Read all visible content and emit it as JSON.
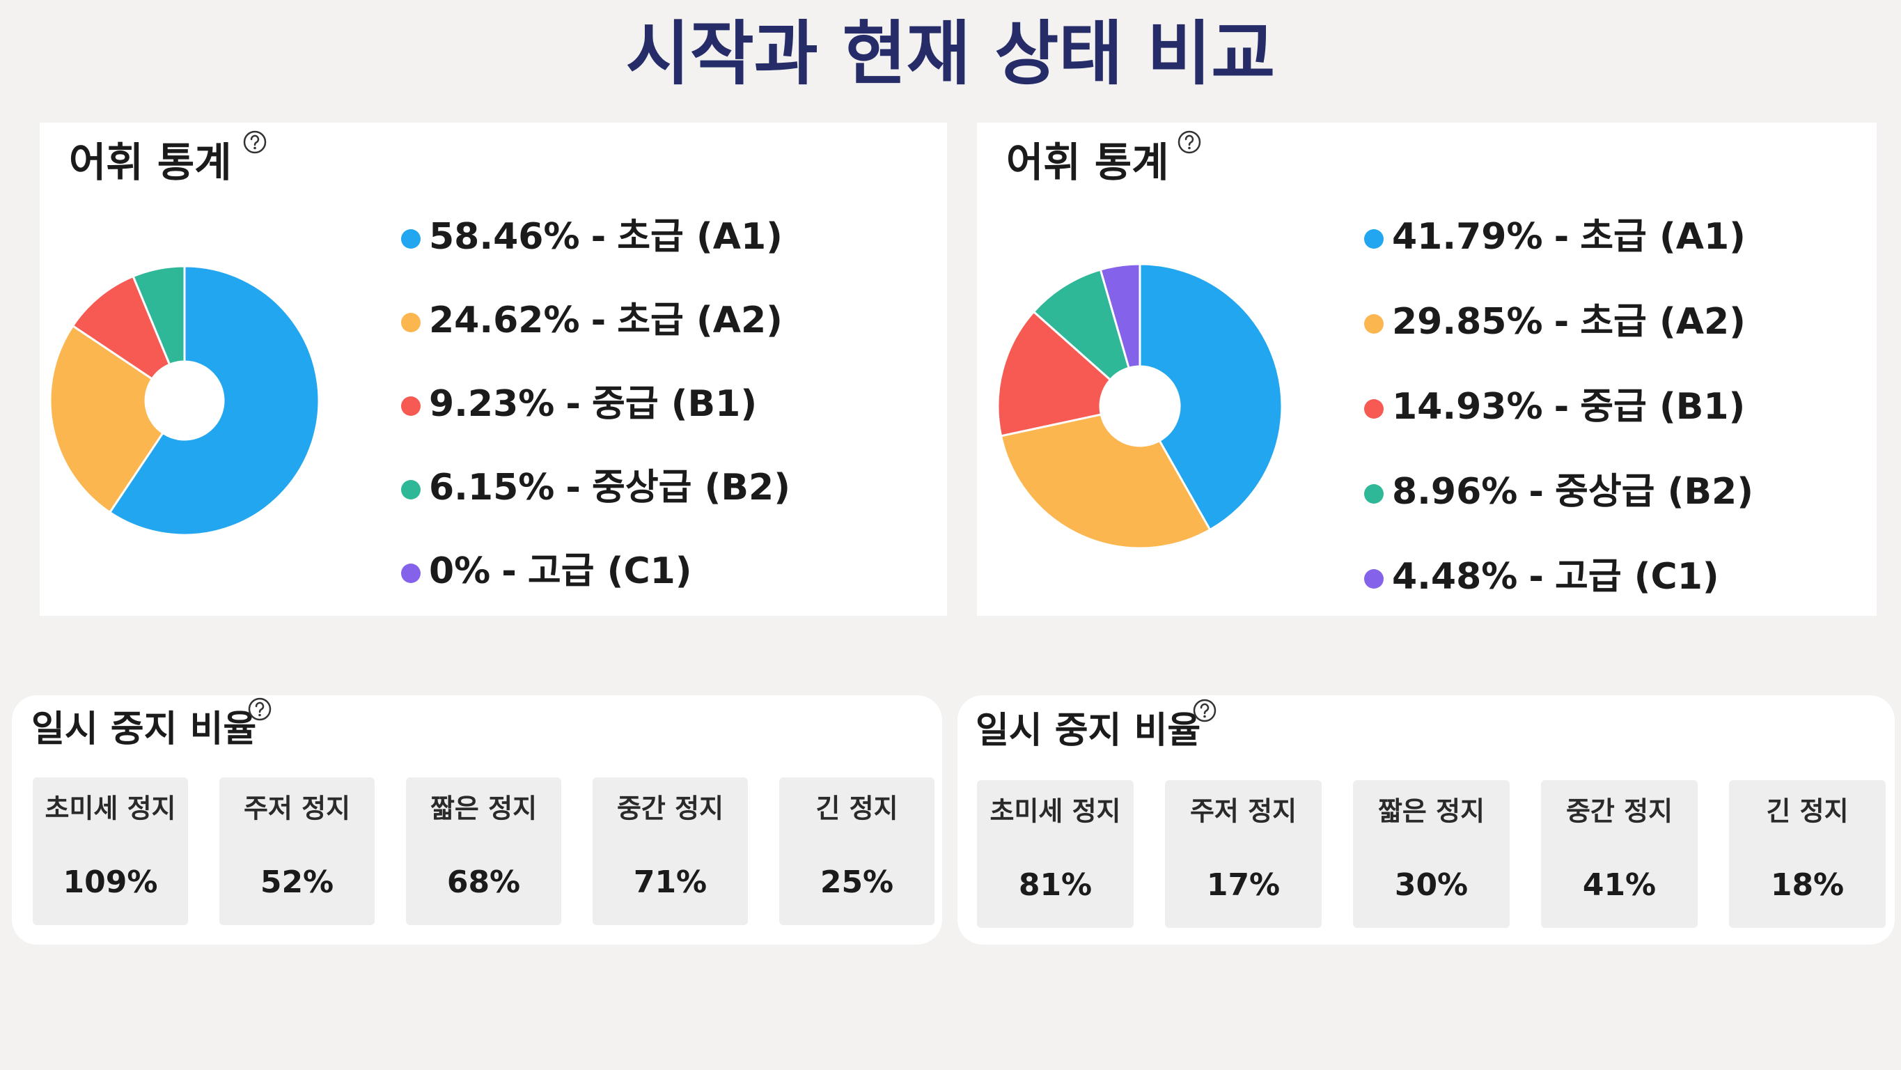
{
  "title": "시작과 현재 상태 비교",
  "chart_data": [
    {
      "type": "pie",
      "title": "어휘 통계",
      "categories": [
        "초급 (A1)",
        "초급 (A2)",
        "중급 (B1)",
        "중상급 (B2)",
        "고급 (C1)"
      ],
      "values": [
        58.46,
        24.62,
        9.23,
        6.15,
        0
      ],
      "value_labels": [
        "58.46%",
        "24.62%",
        "9.23%",
        "6.15%",
        "0%"
      ],
      "label_separator": "-",
      "colors": [
        "#22a6f0",
        "#fbb650",
        "#f75a52",
        "#2fb898",
        "#8462ea"
      ]
    },
    {
      "type": "pie",
      "title": "어휘 통계",
      "categories": [
        "초급 (A1)",
        "초급 (A2)",
        "중급 (B1)",
        "중상급 (B2)",
        "고급 (C1)"
      ],
      "values": [
        41.79,
        29.85,
        14.93,
        8.96,
        4.48
      ],
      "value_labels": [
        "41.79%",
        "29.85%",
        "14.93%",
        "8.96%",
        "4.48%"
      ],
      "label_separator": "-",
      "colors": [
        "#22a6f0",
        "#fbb650",
        "#f75a52",
        "#2fb898",
        "#8462ea"
      ]
    }
  ],
  "pause_panels": [
    {
      "title": "일시 중지 비율",
      "items": [
        {
          "label": "초미세 정지",
          "value": "109%"
        },
        {
          "label": "주저 정지",
          "value": "52%"
        },
        {
          "label": "짧은 정지",
          "value": "68%"
        },
        {
          "label": "중간 정지",
          "value": "71%"
        },
        {
          "label": "긴 정지",
          "value": "25%"
        }
      ]
    },
    {
      "title": "일시 중지 비율",
      "items": [
        {
          "label": "초미세 정지",
          "value": "81%"
        },
        {
          "label": "주저 정지",
          "value": "17%"
        },
        {
          "label": "짧은 정지",
          "value": "30%"
        },
        {
          "label": "중간 정지",
          "value": "41%"
        },
        {
          "label": "긴 정지",
          "value": "18%"
        }
      ]
    }
  ]
}
